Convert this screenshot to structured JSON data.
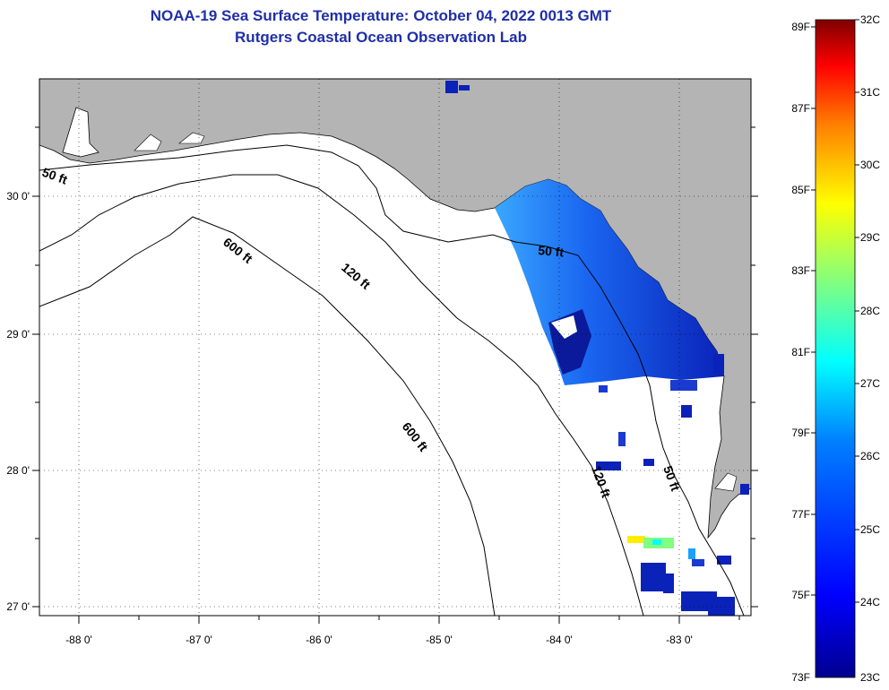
{
  "title": "NOAA-19 Sea Surface Temperature:  October 04, 2022 0013 GMT",
  "subtitle": "Rutgers Coastal Ocean Observation Lab",
  "lon_labels": [
    "-88 0'",
    "-87 0'",
    "-86 0'",
    "-85 0'",
    "-84 0'",
    "-83 0'"
  ],
  "lat_labels": [
    "30 0'",
    "29 0'",
    "28 0'",
    "27 0'"
  ],
  "contour_labels": {
    "c50_west": "50 ft",
    "c600_a": "600 ft",
    "c120_a": "120 ft",
    "c50_mid": "50 ft",
    "c600_b": "600 ft",
    "c120_b": "120 ft",
    "c50_south": "50 ft"
  },
  "colorbar": {
    "fahrenheit": [
      "89F",
      "87F",
      "85F",
      "83F",
      "81F",
      "79F",
      "77F",
      "75F",
      "73F"
    ],
    "celsius": [
      "32C",
      "31C",
      "30C",
      "29C",
      "28C",
      "27C",
      "26C",
      "25C",
      "24C",
      "23C"
    ],
    "colors": [
      "#7f0000",
      "#ff0000",
      "#ff8000",
      "#ffff00",
      "#80ff80",
      "#00ffff",
      "#0080ff",
      "#0000ff",
      "#00008f"
    ]
  },
  "colors": {
    "title": "#1f2fa8",
    "land": "#b4b4b4",
    "water": "#ffffff"
  }
}
